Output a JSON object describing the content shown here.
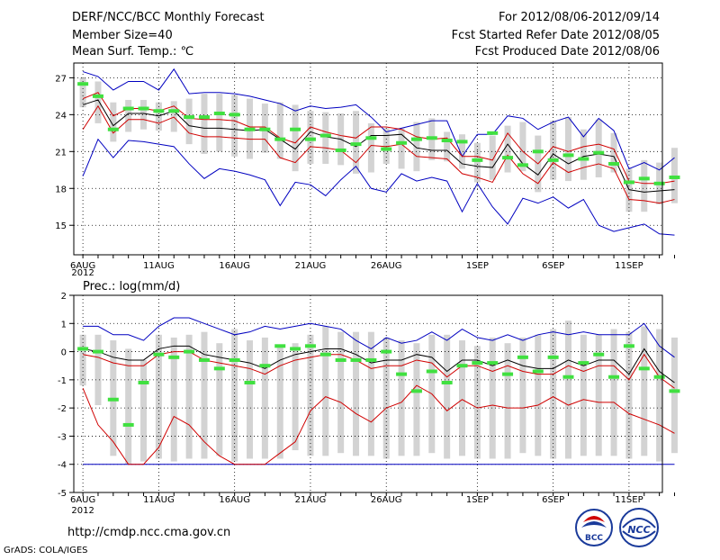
{
  "header": {
    "title": "DERF/NCC/BCC Monthly Forecast",
    "member_size": "Member Size=40",
    "variable": "Mean Surf. Temp.: ℃",
    "period": "For 2012/08/06-2012/09/14",
    "start_date": "Fcst Started Refer Date 2012/08/05",
    "produced_date": "Fcst Produced Date 2012/08/06"
  },
  "footer": {
    "url": "http://cmdp.ncc.cma.gov.cn",
    "credit": "GrADS: COLA/IGES",
    "logo_bcc": "BCC",
    "logo_ncc": "NCC"
  },
  "colors": {
    "box": "#d3d3d3",
    "mean": "#000000",
    "spread": "#d00000",
    "extreme": "#0000c0",
    "marker": "#40e040",
    "grid": "#000000"
  },
  "chart_data": [
    {
      "type": "box-line",
      "name": "temperature",
      "ylabel": "Mean Surf. Temp.: ℃",
      "ylim": [
        12.6,
        28.2
      ],
      "yticks": [
        15,
        18,
        21,
        24,
        27
      ],
      "xlim": [
        0.4,
        39.2
      ],
      "year_label": "2012",
      "xtick_labels": [
        {
          "day": 1,
          "label": "6AUG"
        },
        {
          "day": 6,
          "label": "11AUG"
        },
        {
          "day": 11,
          "label": "16AUG"
        },
        {
          "day": 16,
          "label": "21AUG"
        },
        {
          "day": 21,
          "label": "26AUG"
        },
        {
          "day": 27,
          "label": "1SEP"
        },
        {
          "day": 32,
          "label": "6SEP"
        },
        {
          "day": 37,
          "label": "11SEP"
        }
      ],
      "box_low": [
        24.6,
        23.3,
        21.8,
        22.6,
        22.8,
        22.7,
        22.6,
        21.6,
        20.8,
        21.0,
        20.6,
        20.4,
        20.9,
        20.4,
        19.4,
        20.0,
        20.0,
        19.9,
        19.2,
        19.3,
        20.0,
        19.6,
        19.4,
        20.3,
        20.2,
        19.6,
        18.5,
        18.7,
        19.3,
        19.4,
        17.7,
        18.7,
        18.6,
        18.7,
        18.9,
        19.3,
        16.1,
        16.1,
        16.7,
        16.8
      ],
      "box_high": [
        27.0,
        26.7,
        25.0,
        25.2,
        25.2,
        25.0,
        25.1,
        25.3,
        25.7,
        25.7,
        25.6,
        25.3,
        24.9,
        25.0,
        24.8,
        24.3,
        24.2,
        24.1,
        24.3,
        23.3,
        22.9,
        22.9,
        23.4,
        23.7,
        22.6,
        22.4,
        21.7,
        22.3,
        23.1,
        23.4,
        22.3,
        23.5,
        23.8,
        22.8,
        23.6,
        22.5,
        19.6,
        20.3,
        20.1,
        21.3
      ],
      "max": [
        27.5,
        27.1,
        26.0,
        26.7,
        26.7,
        26.0,
        27.7,
        25.7,
        25.8,
        25.8,
        25.7,
        25.5,
        25.2,
        24.9,
        24.3,
        24.7,
        24.5,
        24.6,
        24.8,
        23.8,
        22.6,
        22.9,
        23.2,
        23.5,
        23.5,
        20.6,
        22.4,
        22.4,
        23.9,
        23.7,
        22.8,
        23.4,
        23.8,
        22.2,
        23.7,
        22.7,
        19.6,
        20.1,
        19.5,
        20.5
      ],
      "min": [
        19.0,
        22.0,
        20.5,
        21.9,
        21.8,
        21.6,
        21.4,
        20.0,
        18.8,
        19.6,
        19.4,
        19.1,
        18.7,
        16.6,
        18.5,
        18.3,
        17.4,
        18.7,
        19.8,
        18.0,
        17.7,
        19.2,
        18.6,
        18.9,
        18.6,
        16.1,
        18.4,
        16.5,
        15.1,
        17.2,
        16.8,
        17.3,
        16.4,
        17.1,
        15.0,
        14.5,
        14.8,
        15.1,
        14.3,
        14.2
      ],
      "mean": [
        24.8,
        25.2,
        23.1,
        24.1,
        24.1,
        23.9,
        24.3,
        23.1,
        22.9,
        22.9,
        22.8,
        22.7,
        22.8,
        22.0,
        21.2,
        22.6,
        22.2,
        22.0,
        21.4,
        22.3,
        22.3,
        22.4,
        21.3,
        21.1,
        21.1,
        20.0,
        19.8,
        19.7,
        21.6,
        20.0,
        19.1,
        20.8,
        20.0,
        20.6,
        20.8,
        20.6,
        17.9,
        17.7,
        17.8,
        17.9
      ],
      "upper": [
        25.3,
        25.8,
        23.9,
        24.5,
        24.5,
        24.3,
        24.7,
        23.7,
        23.6,
        23.6,
        23.5,
        23.0,
        23.0,
        22.1,
        21.7,
        23.0,
        22.6,
        22.3,
        22.1,
        23.0,
        23.0,
        22.8,
        22.2,
        22.0,
        22.1,
        20.6,
        20.6,
        20.3,
        22.5,
        21.0,
        20.0,
        21.4,
        21.0,
        21.4,
        21.6,
        21.2,
        18.6,
        18.4,
        18.4,
        18.6
      ],
      "lower": [
        22.8,
        24.7,
        22.5,
        23.6,
        23.6,
        23.3,
        23.8,
        22.5,
        22.2,
        22.2,
        22.1,
        22.0,
        22.0,
        20.5,
        20.1,
        21.4,
        21.3,
        21.1,
        20.1,
        21.5,
        21.4,
        21.6,
        20.6,
        20.5,
        20.4,
        19.2,
        18.9,
        18.5,
        20.7,
        19.2,
        18.4,
        20.1,
        19.3,
        19.7,
        20.0,
        19.6,
        17.1,
        17.0,
        16.8,
        17.1
      ],
      "marker": [
        26.5,
        25.5,
        22.8,
        24.5,
        24.5,
        24.3,
        24.3,
        23.8,
        23.8,
        24.1,
        24.0,
        22.8,
        22.8,
        22.0,
        22.8,
        22.0,
        22.3,
        21.1,
        21.6,
        22.1,
        21.2,
        21.7,
        22.0,
        22.1,
        21.9,
        21.8,
        20.3,
        22.5,
        20.5,
        19.9,
        21.0,
        20.3,
        20.7,
        20.4,
        20.9,
        20.0,
        18.5,
        18.8,
        18.4,
        18.9
      ]
    },
    {
      "type": "box-line",
      "name": "precipitation",
      "ylabel": "Prec.: log(mm/d)",
      "ylim": [
        -5,
        2
      ],
      "yticks": [
        -5,
        -4,
        -3,
        -2,
        -1,
        0,
        1,
        2
      ],
      "xlim": [
        0.4,
        39.2
      ],
      "year_label": "2012",
      "xtick_labels": [
        {
          "day": 1,
          "label": "6AUG"
        },
        {
          "day": 6,
          "label": "11AUG"
        },
        {
          "day": 11,
          "label": "16AUG"
        },
        {
          "day": 16,
          "label": "21AUG"
        },
        {
          "day": 21,
          "label": "26AUG"
        },
        {
          "day": 27,
          "label": "1SEP"
        },
        {
          "day": 32,
          "label": "6SEP"
        },
        {
          "day": 37,
          "label": "11SEP"
        }
      ],
      "box_low": [
        -1.2,
        -1.9,
        -3.7,
        -4.0,
        -3.9,
        -3.8,
        -3.9,
        -3.8,
        -3.8,
        -3.7,
        -3.9,
        -3.8,
        -3.8,
        -3.8,
        -3.5,
        -3.7,
        -3.7,
        -3.6,
        -3.7,
        -3.7,
        -3.8,
        -3.7,
        -3.7,
        -3.6,
        -3.8,
        -3.7,
        -3.8,
        -3.8,
        -3.8,
        -3.6,
        -3.7,
        -3.8,
        -3.8,
        -3.7,
        -3.7,
        -3.7,
        -3.8,
        -3.7,
        -3.9,
        -3.6
      ],
      "box_high": [
        0.6,
        0.6,
        0.4,
        0.1,
        -0.3,
        0.6,
        0.5,
        0.6,
        0.7,
        0.3,
        0.8,
        0.4,
        0.5,
        0.2,
        0.3,
        0.6,
        0.9,
        0.7,
        0.7,
        0.7,
        0.5,
        0.4,
        0.3,
        0.6,
        0.6,
        0.4,
        0.2,
        0.5,
        0.3,
        0.5,
        0.6,
        0.8,
        1.1,
        0.6,
        0.6,
        0.8,
        0.7,
        0.9,
        0.8,
        0.5
      ],
      "max": [
        0.9,
        0.9,
        0.6,
        0.6,
        0.4,
        0.9,
        1.2,
        1.2,
        1.0,
        0.8,
        0.6,
        0.7,
        0.9,
        0.8,
        0.9,
        1.0,
        0.9,
        0.8,
        0.4,
        0.1,
        0.5,
        0.3,
        0.4,
        0.7,
        0.4,
        0.8,
        0.5,
        0.4,
        0.6,
        0.4,
        0.6,
        0.7,
        0.6,
        0.7,
        0.6,
        0.6,
        0.6,
        1.0,
        0.2,
        -0.2
      ],
      "min": [
        -4.0,
        -4.0,
        -4.0,
        -4.0,
        -4.0,
        -4.0,
        -4.0,
        -4.0,
        -4.0,
        -4.0,
        -4.0,
        -4.0,
        -4.0,
        -4.0,
        -4.0,
        -4.0,
        -4.0,
        -4.0,
        -4.0,
        -4.0,
        -4.0,
        -4.0,
        -4.0,
        -4.0,
        -4.0,
        -4.0,
        -4.0,
        -4.0,
        -4.0,
        -4.0,
        -4.0,
        -4.0,
        -4.0,
        -4.0,
        -4.0,
        -4.0,
        -4.0,
        -4.0,
        -4.0,
        -4.0
      ],
      "mean": [
        0.1,
        0.0,
        -0.2,
        -0.3,
        -0.3,
        0.1,
        0.2,
        0.2,
        -0.1,
        -0.2,
        -0.3,
        -0.4,
        -0.6,
        -0.3,
        -0.1,
        0.0,
        0.1,
        0.1,
        -0.1,
        -0.4,
        -0.3,
        -0.3,
        -0.1,
        -0.2,
        -0.7,
        -0.3,
        -0.3,
        -0.5,
        -0.3,
        -0.5,
        -0.6,
        -0.6,
        -0.3,
        -0.5,
        -0.3,
        -0.3,
        -0.8,
        0.1,
        -0.7,
        -1.1
      ],
      "upper": [
        -0.1,
        -0.2,
        -0.4,
        -0.5,
        -0.5,
        -0.1,
        0.0,
        0.0,
        -0.3,
        -0.4,
        -0.5,
        -0.6,
        -0.8,
        -0.5,
        -0.3,
        -0.2,
        -0.1,
        -0.1,
        -0.3,
        -0.6,
        -0.5,
        -0.5,
        -0.3,
        -0.4,
        -0.9,
        -0.5,
        -0.5,
        -0.7,
        -0.5,
        -0.7,
        -0.8,
        -0.8,
        -0.5,
        -0.7,
        -0.5,
        -0.5,
        -1.0,
        -0.1,
        -0.9,
        -1.3
      ],
      "lower": [
        -1.3,
        -2.6,
        -3.2,
        -4.0,
        -4.0,
        -3.4,
        -2.3,
        -2.6,
        -3.2,
        -3.7,
        -4.0,
        -4.0,
        -4.0,
        -3.6,
        -3.2,
        -2.1,
        -1.6,
        -1.8,
        -2.2,
        -2.5,
        -2.0,
        -1.8,
        -1.2,
        -1.5,
        -2.1,
        -1.7,
        -2.0,
        -1.9,
        -2.0,
        -2.0,
        -1.9,
        -1.6,
        -1.9,
        -1.7,
        -1.8,
        -1.8,
        -2.2,
        -2.4,
        -2.6,
        -2.9
      ],
      "marker": [
        0.1,
        0.0,
        -1.7,
        -2.6,
        -1.1,
        -0.1,
        -0.2,
        0.0,
        -0.3,
        -0.6,
        -0.3,
        -1.1,
        -0.5,
        0.2,
        0.1,
        0.2,
        -0.1,
        -0.3,
        -0.3,
        -0.3,
        0.0,
        -0.8,
        -1.4,
        -0.7,
        -1.1,
        -0.5,
        -0.4,
        -0.4,
        -0.8,
        -0.2,
        -0.7,
        -0.2,
        -0.9,
        -0.4,
        -0.1,
        -0.9,
        0.2,
        -0.6,
        -0.9,
        -1.4
      ]
    }
  ]
}
